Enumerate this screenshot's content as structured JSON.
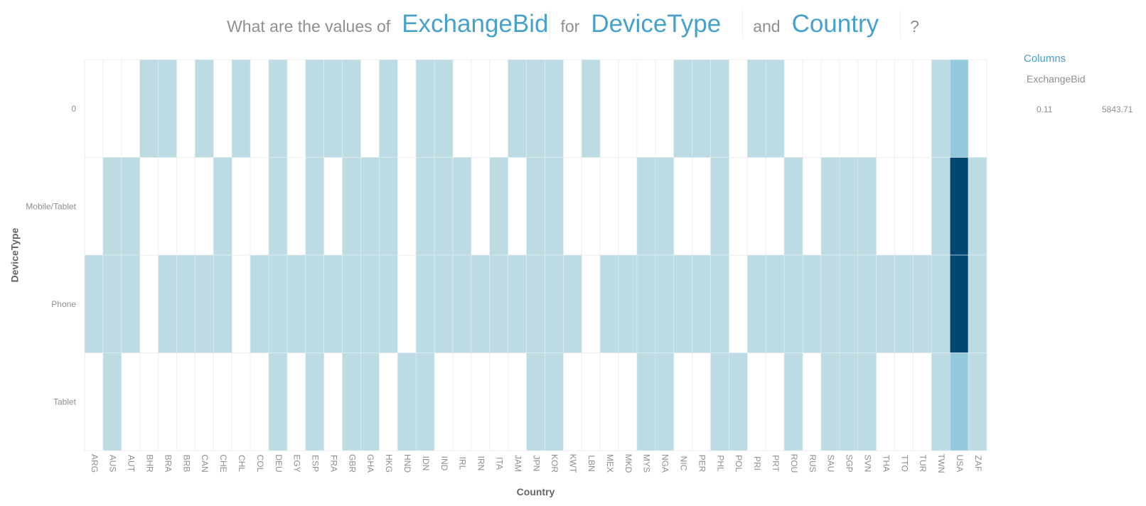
{
  "question": {
    "prefix": "What are the values of",
    "measure": "ExchangeBid",
    "connector1": "for",
    "dimension1": "DeviceType",
    "connector2": "and",
    "dimension2": "Country",
    "suffix": "?"
  },
  "legend": {
    "title": "Columns",
    "field": "ExchangeBid",
    "min_label": "0.11",
    "max_label": "5843.71"
  },
  "colors": {
    "empty": "#ffffff",
    "low": "#bcdbe3",
    "mid": "#83c2db",
    "high": "#014772",
    "grid": "#eeeeee",
    "axis_text": "#8f8f8f",
    "axis_title": "#666666"
  },
  "chart_data": {
    "type": "heatmap",
    "xlabel": "Country",
    "ylabel": "DeviceType",
    "x": [
      "ARG",
      "AUS",
      "AUT",
      "BHR",
      "BRA",
      "BRB",
      "CAN",
      "CHE",
      "CHL",
      "COL",
      "DEU",
      "EGY",
      "ESP",
      "FRA",
      "GBR",
      "GHA",
      "HKG",
      "HND",
      "IDN",
      "IND",
      "IRL",
      "IRN",
      "ITA",
      "JAM",
      "JPN",
      "KOR",
      "KWT",
      "LBN",
      "MEX",
      "MKD",
      "MYS",
      "NGA",
      "NIC",
      "PER",
      "PHL",
      "POL",
      "PRI",
      "PRT",
      "ROU",
      "RUS",
      "SAU",
      "SGP",
      "SVN",
      "THA",
      "TTO",
      "TUR",
      "TWN",
      "USA",
      "ZAF"
    ],
    "y": [
      "0",
      "Mobile/Tablet",
      "Phone",
      "Tablet"
    ],
    "value_range": [
      0.11,
      5843.71
    ],
    "values": [
      [
        null,
        null,
        null,
        5,
        5,
        null,
        5,
        null,
        5,
        null,
        5,
        null,
        5,
        5,
        5,
        null,
        5,
        null,
        5,
        5,
        null,
        null,
        null,
        5,
        5,
        5,
        null,
        5,
        null,
        null,
        null,
        null,
        5,
        5,
        5,
        null,
        5,
        5,
        null,
        null,
        null,
        null,
        null,
        null,
        null,
        null,
        5,
        1500,
        null
      ],
      [
        null,
        5,
        5,
        null,
        null,
        null,
        null,
        5,
        null,
        null,
        5,
        null,
        5,
        null,
        5,
        5,
        5,
        null,
        5,
        5,
        5,
        null,
        5,
        null,
        5,
        5,
        null,
        null,
        null,
        null,
        5,
        5,
        null,
        null,
        5,
        null,
        null,
        null,
        5,
        null,
        5,
        5,
        5,
        null,
        null,
        null,
        5,
        5843.71,
        5
      ],
      [
        5,
        5,
        5,
        null,
        5,
        5,
        5,
        5,
        null,
        5,
        5,
        5,
        5,
        5,
        5,
        5,
        5,
        null,
        5,
        5,
        5,
        5,
        5,
        5,
        5,
        5,
        5,
        null,
        5,
        5,
        5,
        5,
        5,
        5,
        5,
        null,
        5,
        5,
        5,
        5,
        5,
        5,
        5,
        5,
        5,
        5,
        5,
        5843.71,
        5
      ],
      [
        null,
        5,
        null,
        null,
        null,
        null,
        null,
        null,
        null,
        null,
        5,
        null,
        5,
        null,
        5,
        5,
        null,
        5,
        5,
        null,
        null,
        null,
        null,
        null,
        5,
        5,
        null,
        null,
        null,
        null,
        5,
        5,
        null,
        null,
        5,
        5,
        null,
        null,
        5,
        null,
        5,
        5,
        5,
        null,
        null,
        null,
        5,
        1500,
        5
      ]
    ]
  }
}
